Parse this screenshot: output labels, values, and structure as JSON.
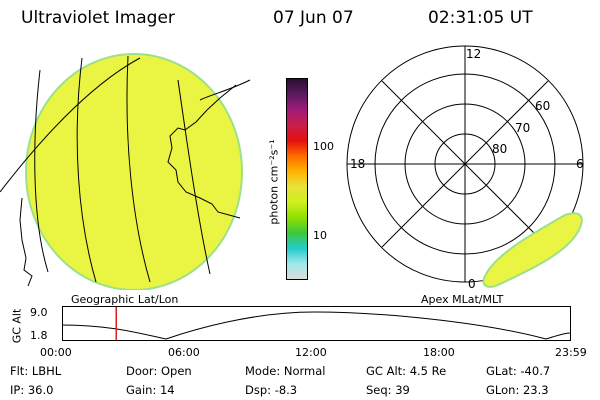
{
  "header": {
    "instrument": "Ultraviolet Imager",
    "date": "07 Jun 07",
    "time": "02:31:05 UT"
  },
  "colorbar": {
    "label": "photon cm⁻²s⁻¹",
    "tick_high": "100",
    "tick_low": "10",
    "colors": [
      "#2a0f30",
      "#5a1a5e",
      "#a01a7a",
      "#c81f4a",
      "#e31010",
      "#ff6a00",
      "#ffb400",
      "#e8e23a",
      "#cff01c",
      "#90e000",
      "#3ec83a",
      "#22cccc",
      "#9fe8ea",
      "#dcdcdc"
    ]
  },
  "left_panel": {
    "caption": "Geographic Lat/Lon",
    "fill_color": "#e9f542",
    "edge_color": "#9ee08a"
  },
  "right_panel": {
    "caption": "Apex MLat/MLT",
    "mlt_labels": {
      "top": "12",
      "left": "18",
      "right": "6",
      "bottom": "0"
    },
    "lat_labels": [
      "60",
      "70",
      "80"
    ],
    "fill_color": "#e9f542",
    "edge_color": "#9ee08a"
  },
  "orbit_plot": {
    "ylabel": "GC Alt",
    "y_ticks": [
      "9.0",
      "1.8"
    ],
    "x_ticks": [
      "00:00",
      "06:00",
      "12:00",
      "18:00",
      "23:59"
    ],
    "marker_color": "#e31a1a",
    "marker_time_fraction": 0.105
  },
  "status": {
    "flt_label": "Flt:",
    "flt_value": "LBHL",
    "ip_label": "IP:",
    "ip_value": "36.0",
    "door_label": "Door:",
    "door_value": "Open",
    "gain_label": "Gain:",
    "gain_value": "14",
    "mode_label": "Mode:",
    "mode_value": "Normal",
    "dsp_label": "Dsp:",
    "dsp_value": "-8.3",
    "gcalt_label": "GC Alt:",
    "gcalt_value": "4.5 Re",
    "seq_label": "Seq:",
    "seq_value": "39",
    "glat_label": "GLat:",
    "glat_value": "-40.7",
    "glon_label": "GLon:",
    "glon_value": "23.3"
  }
}
